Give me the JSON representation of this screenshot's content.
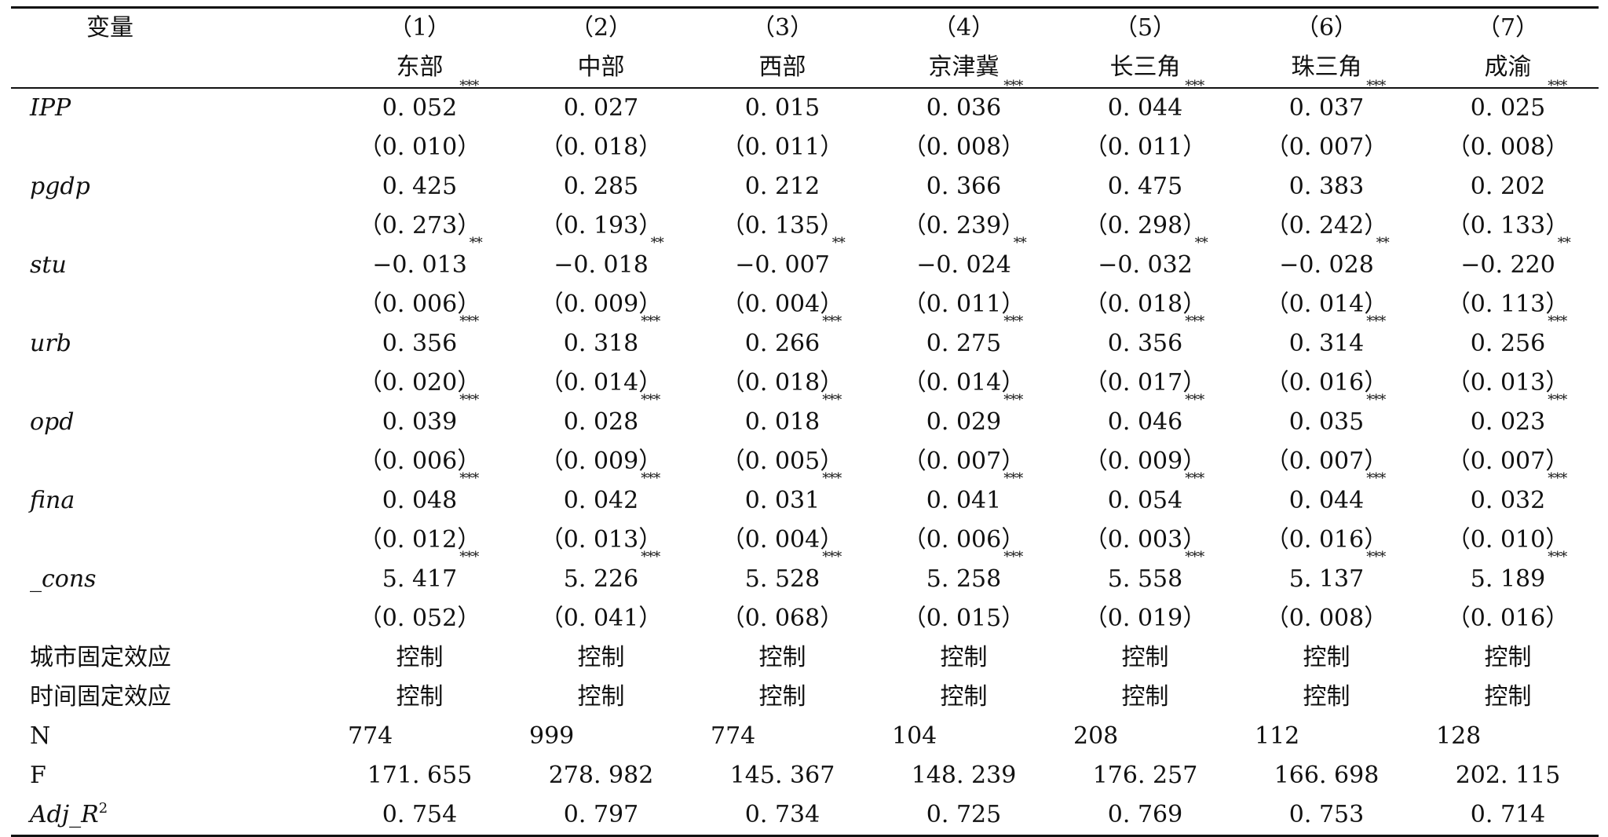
{
  "table": {
    "header": {
      "var_label": "变量",
      "columns": [
        {
          "index": "（1）",
          "label": "东部"
        },
        {
          "index": "（2）",
          "label": "中部"
        },
        {
          "index": "（3）",
          "label": "西部"
        },
        {
          "index": "（4）",
          "label": "京津冀"
        },
        {
          "index": "（5）",
          "label": "长三角"
        },
        {
          "index": "（6）",
          "label": "珠三角"
        },
        {
          "index": "（7）",
          "label": "成渝"
        }
      ]
    },
    "rows": [
      {
        "var": "IPP",
        "italic": true,
        "kind": "coef",
        "cells": [
          {
            "v": "0. 052",
            "s": "***"
          },
          {
            "v": "0. 027",
            "s": ""
          },
          {
            "v": "0. 015",
            "s": ""
          },
          {
            "v": "0. 036",
            "s": "***"
          },
          {
            "v": "0. 044",
            "s": "***"
          },
          {
            "v": "0. 037",
            "s": "***"
          },
          {
            "v": "0. 025",
            "s": "***"
          }
        ]
      },
      {
        "var": "",
        "italic": false,
        "kind": "se",
        "cells": [
          {
            "v": "（0. 010）",
            "s": ""
          },
          {
            "v": "（0. 018）",
            "s": ""
          },
          {
            "v": "（0. 011）",
            "s": ""
          },
          {
            "v": "（0. 008）",
            "s": ""
          },
          {
            "v": "（0. 011）",
            "s": ""
          },
          {
            "v": "（0. 007）",
            "s": ""
          },
          {
            "v": "（0. 008）",
            "s": ""
          }
        ]
      },
      {
        "var": "pgdp",
        "italic": true,
        "kind": "coef",
        "cells": [
          {
            "v": "0. 425",
            "s": ""
          },
          {
            "v": "0. 285",
            "s": ""
          },
          {
            "v": "0. 212",
            "s": ""
          },
          {
            "v": "0. 366",
            "s": ""
          },
          {
            "v": "0. 475",
            "s": ""
          },
          {
            "v": "0. 383",
            "s": ""
          },
          {
            "v": "0. 202",
            "s": ""
          }
        ]
      },
      {
        "var": "",
        "italic": false,
        "kind": "se",
        "cells": [
          {
            "v": "（0. 273）",
            "s": ""
          },
          {
            "v": "（0. 193）",
            "s": ""
          },
          {
            "v": "（0. 135）",
            "s": ""
          },
          {
            "v": "（0. 239）",
            "s": ""
          },
          {
            "v": "（0. 298）",
            "s": ""
          },
          {
            "v": "（0. 242）",
            "s": ""
          },
          {
            "v": "（0. 133）",
            "s": ""
          }
        ]
      },
      {
        "var": "stu",
        "italic": true,
        "kind": "coef",
        "cells": [
          {
            "v": "−0. 013",
            "s": "**"
          },
          {
            "v": "−0. 018",
            "s": "**"
          },
          {
            "v": "−0. 007",
            "s": "**"
          },
          {
            "v": "−0. 024",
            "s": "**"
          },
          {
            "v": "−0. 032",
            "s": "**"
          },
          {
            "v": "−0. 028",
            "s": "**"
          },
          {
            "v": "−0. 220",
            "s": "**"
          }
        ]
      },
      {
        "var": "",
        "italic": false,
        "kind": "se",
        "cells": [
          {
            "v": "（0. 006）",
            "s": ""
          },
          {
            "v": "（0. 009）",
            "s": ""
          },
          {
            "v": "（0. 004）",
            "s": ""
          },
          {
            "v": "（0. 011）",
            "s": ""
          },
          {
            "v": "（0. 018）",
            "s": ""
          },
          {
            "v": "（0. 014）",
            "s": ""
          },
          {
            "v": "（0. 113）",
            "s": ""
          }
        ]
      },
      {
        "var": "urb",
        "italic": true,
        "kind": "coef",
        "cells": [
          {
            "v": "0. 356",
            "s": "***"
          },
          {
            "v": "0. 318",
            "s": "***"
          },
          {
            "v": "0. 266",
            "s": "***"
          },
          {
            "v": "0. 275",
            "s": "***"
          },
          {
            "v": "0. 356",
            "s": "***"
          },
          {
            "v": "0. 314",
            "s": "***"
          },
          {
            "v": "0. 256",
            "s": "***"
          }
        ]
      },
      {
        "var": "",
        "italic": false,
        "kind": "se",
        "cells": [
          {
            "v": "（0. 020）",
            "s": ""
          },
          {
            "v": "（0. 014）",
            "s": ""
          },
          {
            "v": "（0. 018）",
            "s": ""
          },
          {
            "v": "（0. 014）",
            "s": ""
          },
          {
            "v": "（0. 017）",
            "s": ""
          },
          {
            "v": "（0. 016）",
            "s": ""
          },
          {
            "v": "（0. 013）",
            "s": ""
          }
        ]
      },
      {
        "var": "opd",
        "italic": true,
        "kind": "coef",
        "cells": [
          {
            "v": "0. 039",
            "s": "***"
          },
          {
            "v": "0. 028",
            "s": "***"
          },
          {
            "v": "0. 018",
            "s": "***"
          },
          {
            "v": "0. 029",
            "s": "***"
          },
          {
            "v": "0. 046",
            "s": "***"
          },
          {
            "v": "0. 035",
            "s": "***"
          },
          {
            "v": "0. 023",
            "s": "***"
          }
        ]
      },
      {
        "var": "",
        "italic": false,
        "kind": "se",
        "cells": [
          {
            "v": "（0. 006）",
            "s": ""
          },
          {
            "v": "（0. 009）",
            "s": ""
          },
          {
            "v": "（0. 005）",
            "s": ""
          },
          {
            "v": "（0. 007）",
            "s": ""
          },
          {
            "v": "（0. 009）",
            "s": ""
          },
          {
            "v": "（0. 007）",
            "s": ""
          },
          {
            "v": "（0. 007）",
            "s": ""
          }
        ]
      },
      {
        "var": "fina",
        "italic": true,
        "kind": "coef",
        "cells": [
          {
            "v": "0. 048",
            "s": "***"
          },
          {
            "v": "0. 042",
            "s": "***"
          },
          {
            "v": "0. 031",
            "s": "***"
          },
          {
            "v": "0. 041",
            "s": "***"
          },
          {
            "v": "0. 054",
            "s": "***"
          },
          {
            "v": "0. 044",
            "s": "***"
          },
          {
            "v": "0. 032",
            "s": "***"
          }
        ]
      },
      {
        "var": "",
        "italic": false,
        "kind": "se",
        "cells": [
          {
            "v": "（0. 012）",
            "s": ""
          },
          {
            "v": "（0. 013）",
            "s": ""
          },
          {
            "v": "（0. 004）",
            "s": ""
          },
          {
            "v": "（0. 006）",
            "s": ""
          },
          {
            "v": "（0. 003）",
            "s": ""
          },
          {
            "v": "（0. 016）",
            "s": ""
          },
          {
            "v": "（0. 010）",
            "s": ""
          }
        ]
      },
      {
        "var": "_cons",
        "italic": true,
        "kind": "coef",
        "cells": [
          {
            "v": "5. 417",
            "s": "***"
          },
          {
            "v": "5. 226",
            "s": "***"
          },
          {
            "v": "5. 528",
            "s": "***"
          },
          {
            "v": "5. 258",
            "s": "***"
          },
          {
            "v": "5. 558",
            "s": "***"
          },
          {
            "v": "5. 137",
            "s": "***"
          },
          {
            "v": "5. 189",
            "s": "***"
          }
        ]
      },
      {
        "var": "",
        "italic": false,
        "kind": "se",
        "cells": [
          {
            "v": "（0. 052）",
            "s": ""
          },
          {
            "v": "（0. 041）",
            "s": ""
          },
          {
            "v": "（0. 068）",
            "s": ""
          },
          {
            "v": "（0. 015）",
            "s": ""
          },
          {
            "v": "（0. 019）",
            "s": ""
          },
          {
            "v": "（0. 008）",
            "s": ""
          },
          {
            "v": "（0. 016）",
            "s": ""
          }
        ]
      },
      {
        "var": "城市固定效应",
        "italic": false,
        "kind": "text",
        "cells": [
          {
            "v": "控制",
            "s": ""
          },
          {
            "v": "控制",
            "s": ""
          },
          {
            "v": "控制",
            "s": ""
          },
          {
            "v": "控制",
            "s": ""
          },
          {
            "v": "控制",
            "s": ""
          },
          {
            "v": "控制",
            "s": ""
          },
          {
            "v": "控制",
            "s": ""
          }
        ]
      },
      {
        "var": "时间固定效应",
        "italic": false,
        "kind": "text",
        "cells": [
          {
            "v": "控制",
            "s": ""
          },
          {
            "v": "控制",
            "s": ""
          },
          {
            "v": "控制",
            "s": ""
          },
          {
            "v": "控制",
            "s": ""
          },
          {
            "v": "控制",
            "s": ""
          },
          {
            "v": "控制",
            "s": ""
          },
          {
            "v": "控制",
            "s": ""
          }
        ]
      },
      {
        "var": "N",
        "italic": false,
        "kind": "n",
        "cells": [
          {
            "v": "774",
            "s": ""
          },
          {
            "v": "999",
            "s": ""
          },
          {
            "v": "774",
            "s": ""
          },
          {
            "v": "104",
            "s": ""
          },
          {
            "v": "208",
            "s": ""
          },
          {
            "v": "112",
            "s": ""
          },
          {
            "v": "128",
            "s": ""
          }
        ]
      },
      {
        "var": "F",
        "italic": false,
        "kind": "text",
        "cells": [
          {
            "v": "171. 655",
            "s": ""
          },
          {
            "v": "278. 982",
            "s": ""
          },
          {
            "v": "145. 367",
            "s": ""
          },
          {
            "v": "148. 239",
            "s": ""
          },
          {
            "v": "176. 257",
            "s": ""
          },
          {
            "v": "166. 698",
            "s": ""
          },
          {
            "v": "202. 115",
            "s": ""
          }
        ]
      },
      {
        "var": "Adj_R",
        "var_sup": "2",
        "italic": true,
        "kind": "text",
        "last": true,
        "cells": [
          {
            "v": "0. 754",
            "s": ""
          },
          {
            "v": "0. 797",
            "s": ""
          },
          {
            "v": "0. 734",
            "s": ""
          },
          {
            "v": "0. 725",
            "s": ""
          },
          {
            "v": "0. 769",
            "s": ""
          },
          {
            "v": "0. 753",
            "s": ""
          },
          {
            "v": "0. 714",
            "s": ""
          }
        ]
      }
    ]
  }
}
